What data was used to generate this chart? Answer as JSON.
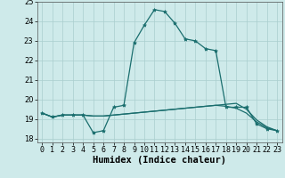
{
  "xlabel": "Humidex (Indice chaleur)",
  "bg_color": "#ceeaea",
  "grid_color": "#aacece",
  "line_color": "#1a6e6e",
  "x_ticks": [
    0,
    1,
    2,
    3,
    4,
    5,
    6,
    7,
    8,
    9,
    10,
    11,
    12,
    13,
    14,
    15,
    16,
    17,
    18,
    19,
    20,
    21,
    22,
    23
  ],
  "ylim": [
    17.8,
    25.0
  ],
  "xlim": [
    -0.5,
    23.5
  ],
  "series1": [
    19.3,
    19.1,
    19.2,
    19.2,
    19.2,
    18.3,
    18.4,
    19.6,
    19.7,
    22.9,
    23.8,
    24.6,
    24.5,
    23.9,
    23.1,
    23.0,
    22.6,
    22.5,
    19.6,
    19.6,
    19.6,
    18.75,
    18.5,
    18.4
  ],
  "series2": [
    19.3,
    19.1,
    19.2,
    19.2,
    19.2,
    19.15,
    19.15,
    19.2,
    19.25,
    19.3,
    19.35,
    19.4,
    19.45,
    19.5,
    19.55,
    19.6,
    19.65,
    19.7,
    19.65,
    19.55,
    19.3,
    18.85,
    18.55,
    18.4
  ],
  "series3": [
    19.3,
    19.1,
    19.2,
    19.2,
    19.2,
    19.15,
    19.15,
    19.2,
    19.25,
    19.3,
    19.35,
    19.4,
    19.45,
    19.5,
    19.55,
    19.6,
    19.65,
    19.7,
    19.75,
    19.8,
    19.5,
    18.95,
    18.6,
    18.4
  ],
  "title_fontsize": 7,
  "xlabel_fontsize": 7.5,
  "tick_fontsize": 6
}
